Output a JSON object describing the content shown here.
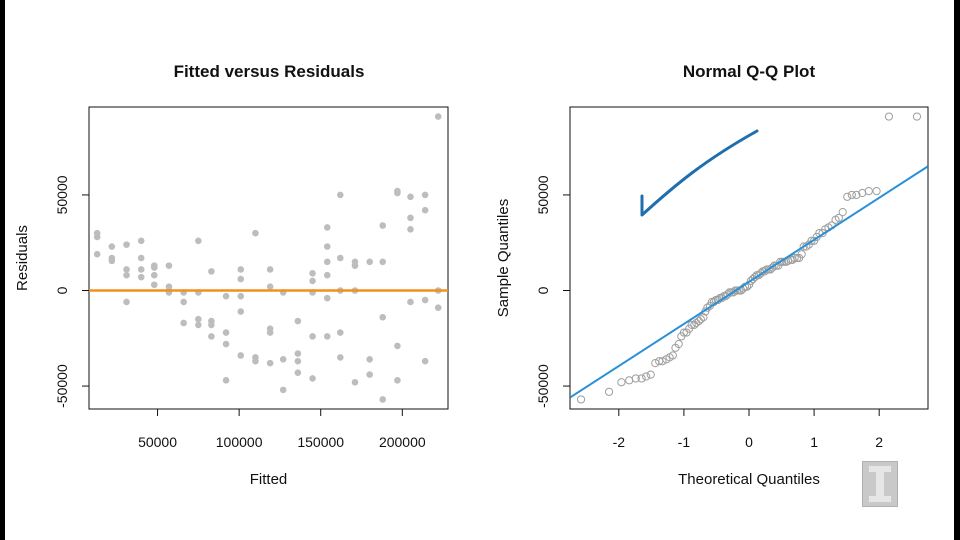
{
  "chart_data": [
    {
      "type": "scatter",
      "title": "Fitted versus Residuals",
      "xlabel": "Fitted",
      "ylabel": "Residuals",
      "xlim": [
        8000,
        228000
      ],
      "ylim": [
        -62000,
        96000
      ],
      "xticks": [
        50000,
        100000,
        150000,
        200000
      ],
      "xtick_labels": [
        "50000",
        "100000",
        "150000",
        "200000"
      ],
      "yticks": [
        -50000,
        0,
        50000
      ],
      "ytick_labels": [
        "-50000",
        "0",
        "50000"
      ],
      "point_color": "#bdbdbd",
      "reference_line": {
        "y": 0,
        "color": "#f0901e"
      },
      "points": [
        [
          13000,
          30000
        ],
        [
          13000,
          28000
        ],
        [
          13000,
          19000
        ],
        [
          22000,
          23000
        ],
        [
          22000,
          17000
        ],
        [
          22000,
          15500
        ],
        [
          31000,
          24000
        ],
        [
          31000,
          11000
        ],
        [
          31000,
          8000
        ],
        [
          31000,
          -6000
        ],
        [
          40000,
          26000
        ],
        [
          40000,
          17000
        ],
        [
          40000,
          11000
        ],
        [
          40000,
          7000
        ],
        [
          48000,
          13000
        ],
        [
          48000,
          12000
        ],
        [
          48000,
          8000
        ],
        [
          48000,
          3000
        ],
        [
          57000,
          13000
        ],
        [
          57000,
          2000
        ],
        [
          57000,
          0
        ],
        [
          57000,
          -1000
        ],
        [
          66000,
          -1000
        ],
        [
          66000,
          -6000
        ],
        [
          66000,
          -17000
        ],
        [
          75000,
          26000
        ],
        [
          75000,
          -1000
        ],
        [
          75000,
          -15000
        ],
        [
          75000,
          -18000
        ],
        [
          83000,
          10000
        ],
        [
          83000,
          -16000
        ],
        [
          83000,
          -18000
        ],
        [
          83000,
          -24000
        ],
        [
          92000,
          -3000
        ],
        [
          92000,
          -22000
        ],
        [
          92000,
          -28000
        ],
        [
          92000,
          -47000
        ],
        [
          101000,
          11000
        ],
        [
          101000,
          6000
        ],
        [
          101000,
          -3000
        ],
        [
          101000,
          -11000
        ],
        [
          101000,
          -34000
        ],
        [
          110000,
          30000
        ],
        [
          110000,
          -35000
        ],
        [
          110000,
          -37000
        ],
        [
          119000,
          11000
        ],
        [
          119000,
          2000
        ],
        [
          119000,
          -20000
        ],
        [
          119000,
          -22000
        ],
        [
          119000,
          -38000
        ],
        [
          127000,
          -1000
        ],
        [
          127000,
          -36000
        ],
        [
          127000,
          -52000
        ],
        [
          136000,
          -16000
        ],
        [
          136000,
          -33000
        ],
        [
          136000,
          -37000
        ],
        [
          136000,
          -43000
        ],
        [
          145000,
          9000
        ],
        [
          145000,
          5000
        ],
        [
          145000,
          -1000
        ],
        [
          145000,
          -24000
        ],
        [
          145000,
          -46000
        ],
        [
          154000,
          33000
        ],
        [
          154000,
          23000
        ],
        [
          154000,
          15000
        ],
        [
          154000,
          8000
        ],
        [
          154000,
          -4000
        ],
        [
          154000,
          -24000
        ],
        [
          162000,
          50000
        ],
        [
          162000,
          17000
        ],
        [
          162000,
          0
        ],
        [
          162000,
          -22000
        ],
        [
          162000,
          -35000
        ],
        [
          171000,
          15000
        ],
        [
          171000,
          13000
        ],
        [
          171000,
          0
        ],
        [
          171000,
          -48000
        ],
        [
          180000,
          15000
        ],
        [
          180000,
          -36000
        ],
        [
          180000,
          -44000
        ],
        [
          188000,
          34000
        ],
        [
          188000,
          15000
        ],
        [
          188000,
          -14000
        ],
        [
          188000,
          -57000
        ],
        [
          197000,
          52000
        ],
        [
          197000,
          51000
        ],
        [
          197000,
          -29000
        ],
        [
          197000,
          -47000
        ],
        [
          205000,
          49000
        ],
        [
          205000,
          38000
        ],
        [
          205000,
          32000
        ],
        [
          205000,
          -6000
        ],
        [
          214000,
          50000
        ],
        [
          214000,
          42000
        ],
        [
          214000,
          -5000
        ],
        [
          214000,
          -37000
        ],
        [
          222000,
          91000
        ],
        [
          222000,
          0
        ],
        [
          222000,
          -9000
        ]
      ]
    },
    {
      "type": "scatter",
      "title": "Normal Q-Q Plot",
      "xlabel": "Theoretical Quantiles",
      "ylabel": "Sample Quantiles",
      "xlim": [
        -2.75,
        2.75
      ],
      "ylim": [
        -62000,
        96000
      ],
      "xticks": [
        -2,
        -1,
        0,
        1,
        2
      ],
      "xtick_labels": [
        "-2",
        "-1",
        "0",
        "1",
        "2"
      ],
      "yticks": [
        -50000,
        0,
        50000
      ],
      "ytick_labels": [
        "-50000",
        "0",
        "50000"
      ],
      "point_color": "#9e9e9e",
      "qq_line": {
        "intercept": 4500,
        "slope": 22000,
        "color": "#2a90d8"
      },
      "annotation_color": "#1f6fb0",
      "points": [
        [
          -2.58,
          -57000
        ],
        [
          -2.15,
          -53000
        ],
        [
          -1.96,
          -48000
        ],
        [
          -1.84,
          -47000
        ],
        [
          -1.74,
          -46000
        ],
        [
          -1.65,
          -46000
        ],
        [
          -1.58,
          -45000
        ],
        [
          -1.51,
          -44000
        ],
        [
          -1.44,
          -38000
        ],
        [
          -1.38,
          -37000
        ],
        [
          -1.33,
          -37000
        ],
        [
          -1.27,
          -36000
        ],
        [
          -1.22,
          -35000
        ],
        [
          -1.17,
          -34000
        ],
        [
          -1.13,
          -30000
        ],
        [
          -1.08,
          -28000
        ],
        [
          -1.04,
          -24000
        ],
        [
          -1.0,
          -22000
        ],
        [
          -0.96,
          -22000
        ],
        [
          -0.92,
          -20000
        ],
        [
          -0.88,
          -18000
        ],
        [
          -0.84,
          -18000
        ],
        [
          -0.81,
          -17000
        ],
        [
          -0.77,
          -16000
        ],
        [
          -0.74,
          -15000
        ],
        [
          -0.7,
          -14000
        ],
        [
          -0.67,
          -11000
        ],
        [
          -0.64,
          -9000
        ],
        [
          -0.6,
          -8000
        ],
        [
          -0.57,
          -6000
        ],
        [
          -0.54,
          -6000
        ],
        [
          -0.51,
          -5000
        ],
        [
          -0.48,
          -5000
        ],
        [
          -0.45,
          -4000
        ],
        [
          -0.42,
          -4000
        ],
        [
          -0.39,
          -3000
        ],
        [
          -0.36,
          -3000
        ],
        [
          -0.33,
          -2000
        ],
        [
          -0.3,
          -1000
        ],
        [
          -0.27,
          -1000
        ],
        [
          -0.24,
          -1000
        ],
        [
          -0.21,
          0
        ],
        [
          -0.18,
          0
        ],
        [
          -0.15,
          0
        ],
        [
          -0.12,
          0
        ],
        [
          -0.09,
          1000
        ],
        [
          -0.06,
          2000
        ],
        [
          -0.03,
          2000
        ],
        [
          0.0,
          3000
        ],
        [
          0.03,
          5000
        ],
        [
          0.06,
          6000
        ],
        [
          0.09,
          7000
        ],
        [
          0.12,
          8000
        ],
        [
          0.15,
          8000
        ],
        [
          0.18,
          9000
        ],
        [
          0.21,
          10000
        ],
        [
          0.24,
          10000
        ],
        [
          0.27,
          11000
        ],
        [
          0.3,
          11000
        ],
        [
          0.33,
          11000
        ],
        [
          0.36,
          12000
        ],
        [
          0.39,
          13000
        ],
        [
          0.42,
          13000
        ],
        [
          0.45,
          13000
        ],
        [
          0.48,
          15000
        ],
        [
          0.51,
          15000
        ],
        [
          0.54,
          15000
        ],
        [
          0.57,
          15000
        ],
        [
          0.6,
          15500
        ],
        [
          0.64,
          16000
        ],
        [
          0.67,
          16000
        ],
        [
          0.7,
          17000
        ],
        [
          0.74,
          17000
        ],
        [
          0.77,
          17000
        ],
        [
          0.81,
          19000
        ],
        [
          0.84,
          23000
        ],
        [
          0.88,
          23000
        ],
        [
          0.92,
          24000
        ],
        [
          0.96,
          26000
        ],
        [
          1.0,
          26000
        ],
        [
          1.04,
          28000
        ],
        [
          1.08,
          30000
        ],
        [
          1.13,
          30000
        ],
        [
          1.17,
          32000
        ],
        [
          1.22,
          33000
        ],
        [
          1.27,
          34000
        ],
        [
          1.33,
          37000
        ],
        [
          1.38,
          38000
        ],
        [
          1.44,
          41000
        ],
        [
          1.51,
          49000
        ],
        [
          1.58,
          50000
        ],
        [
          1.65,
          50000
        ],
        [
          1.74,
          51000
        ],
        [
          1.84,
          52000
        ],
        [
          1.96,
          52000
        ],
        [
          2.15,
          91000
        ],
        [
          2.58,
          91000
        ]
      ]
    }
  ]
}
